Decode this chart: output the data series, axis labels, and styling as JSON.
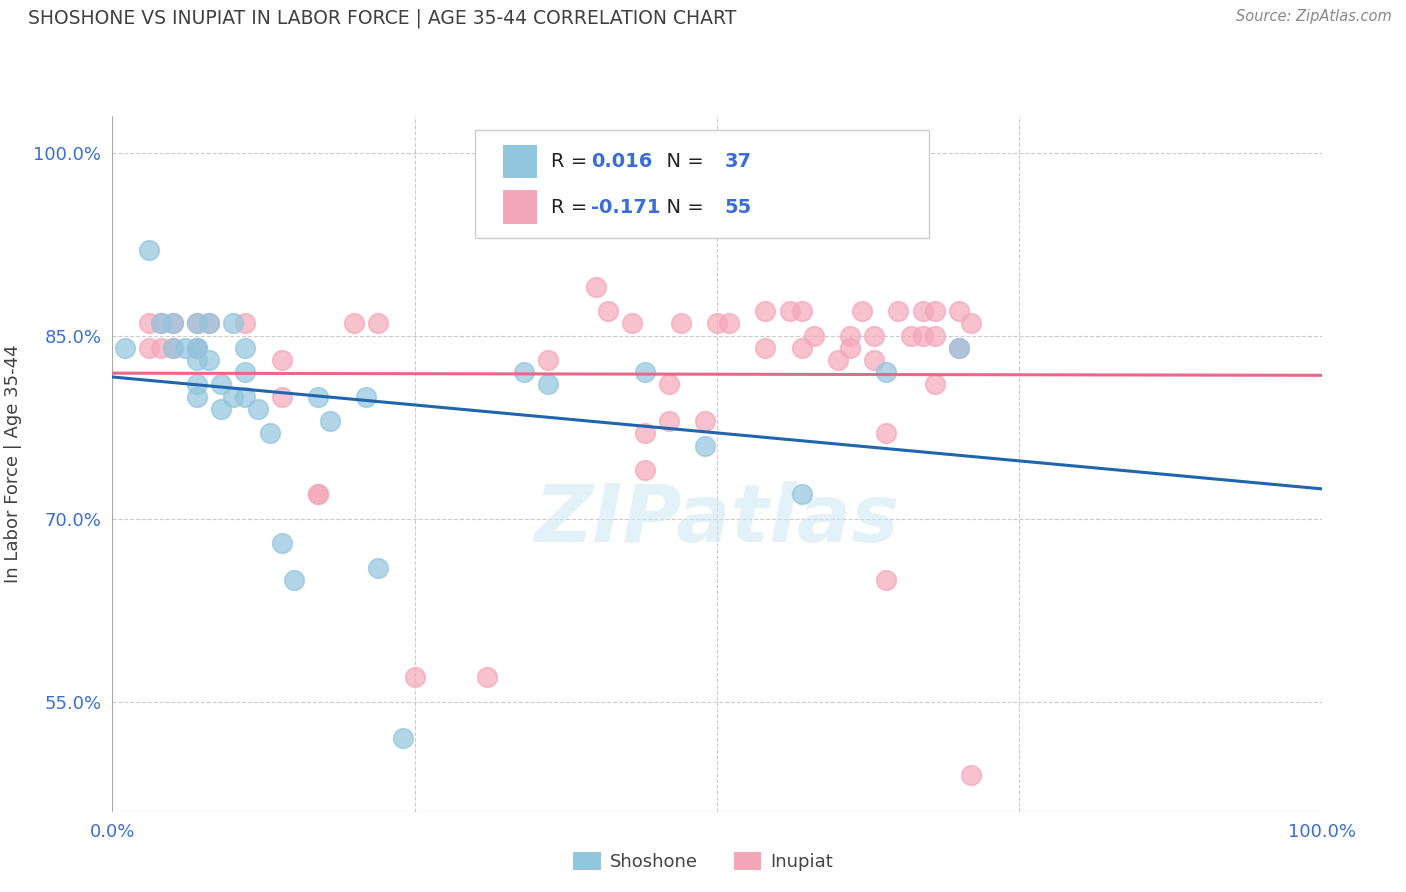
{
  "title": "SHOSHONE VS INUPIAT IN LABOR FORCE | AGE 35-44 CORRELATION CHART",
  "source_text": "Source: ZipAtlas.com",
  "ylabel": "In Labor Force | Age 35-44",
  "watermark": "ZIPatlas",
  "shoshone_R": 0.016,
  "shoshone_N": 37,
  "inupiat_R": -0.171,
  "inupiat_N": 55,
  "shoshone_color": "#92c5de",
  "inupiat_color": "#f4a7b9",
  "shoshone_line_color": "#2166ac",
  "inupiat_line_color": "#e8688a",
  "grid_color": "#cccccc",
  "background_color": "#ffffff",
  "title_color": "#404040",
  "axis_label_color": "#404040",
  "R_value_color": "#3b6ed4",
  "tick_label_color": "#3b6ed4",
  "xmin": 0.0,
  "xmax": 1.0,
  "ymin": 0.46,
  "ymax": 1.03,
  "shoshone_x": [
    0.01,
    0.03,
    0.04,
    0.05,
    0.05,
    0.06,
    0.07,
    0.07,
    0.07,
    0.07,
    0.07,
    0.07,
    0.08,
    0.08,
    0.09,
    0.09,
    0.1,
    0.1,
    0.11,
    0.11,
    0.11,
    0.12,
    0.13,
    0.14,
    0.15,
    0.17,
    0.18,
    0.21,
    0.22,
    0.24,
    0.34,
    0.36,
    0.44,
    0.49,
    0.57,
    0.64,
    0.7
  ],
  "shoshone_y": [
    0.84,
    0.92,
    0.86,
    0.86,
    0.84,
    0.84,
    0.86,
    0.84,
    0.84,
    0.83,
    0.81,
    0.8,
    0.86,
    0.83,
    0.81,
    0.79,
    0.86,
    0.8,
    0.84,
    0.82,
    0.8,
    0.79,
    0.77,
    0.68,
    0.65,
    0.8,
    0.78,
    0.8,
    0.66,
    0.52,
    0.82,
    0.81,
    0.82,
    0.76,
    0.72,
    0.82,
    0.84
  ],
  "inupiat_x": [
    0.03,
    0.03,
    0.04,
    0.04,
    0.05,
    0.05,
    0.07,
    0.07,
    0.08,
    0.11,
    0.14,
    0.14,
    0.17,
    0.17,
    0.2,
    0.22,
    0.25,
    0.31,
    0.36,
    0.4,
    0.41,
    0.43,
    0.44,
    0.44,
    0.46,
    0.46,
    0.47,
    0.49,
    0.5,
    0.51,
    0.54,
    0.54,
    0.56,
    0.57,
    0.57,
    0.58,
    0.6,
    0.61,
    0.61,
    0.62,
    0.63,
    0.63,
    0.64,
    0.64,
    0.65,
    0.66,
    0.67,
    0.67,
    0.68,
    0.68,
    0.68,
    0.7,
    0.7,
    0.71,
    0.71
  ],
  "inupiat_y": [
    0.86,
    0.84,
    0.86,
    0.84,
    0.86,
    0.84,
    0.86,
    0.84,
    0.86,
    0.86,
    0.83,
    0.8,
    0.72,
    0.72,
    0.86,
    0.86,
    0.57,
    0.57,
    0.83,
    0.89,
    0.87,
    0.86,
    0.77,
    0.74,
    0.81,
    0.78,
    0.86,
    0.78,
    0.86,
    0.86,
    0.87,
    0.84,
    0.87,
    0.87,
    0.84,
    0.85,
    0.83,
    0.85,
    0.84,
    0.87,
    0.85,
    0.83,
    0.77,
    0.65,
    0.87,
    0.85,
    0.87,
    0.85,
    0.87,
    0.85,
    0.81,
    0.87,
    0.84,
    0.86,
    0.49
  ],
  "yticks": [
    0.55,
    0.7,
    0.85,
    1.0
  ],
  "ytick_labels": [
    "55.0%",
    "70.0%",
    "85.0%",
    "100.0%"
  ],
  "xticks": [
    0.0,
    0.25,
    0.5,
    0.75,
    1.0
  ],
  "xtick_labels": [
    "0.0%",
    "",
    "",
    "",
    "100.0%"
  ]
}
